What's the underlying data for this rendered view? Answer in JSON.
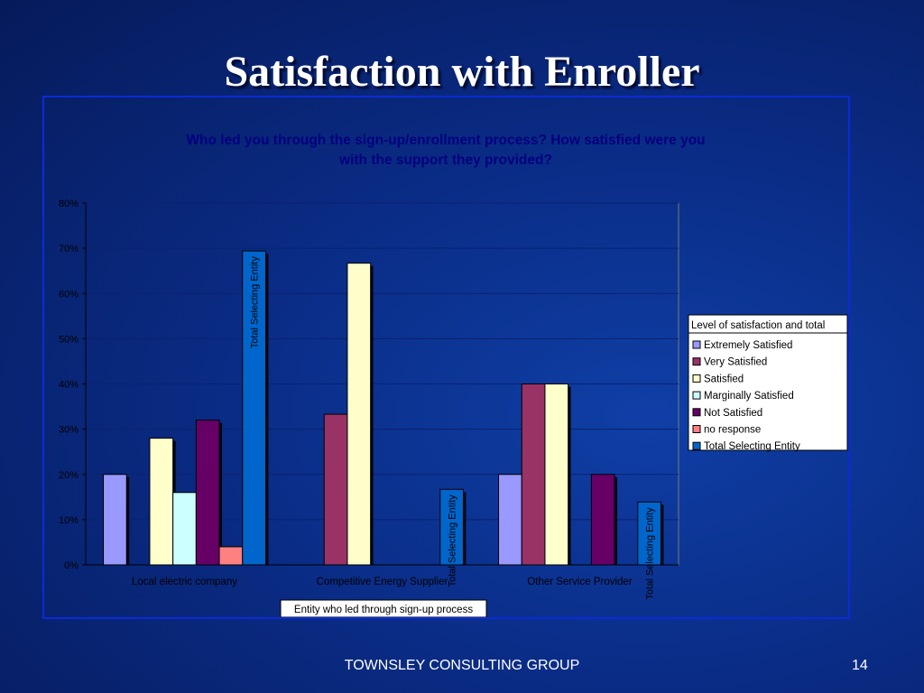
{
  "slide": {
    "title": "Satisfaction with Enroller",
    "footer": "TOWNSLEY CONSULTING GROUP",
    "page_number": "14"
  },
  "colors": {
    "chart_background": "#0a2c86",
    "frame": "#0b2bd6",
    "axis_text": "#000000"
  },
  "chart_data": {
    "type": "bar",
    "title": "Who led you through the sign-up/enrollment process? How satisfied were you with the support they provided?",
    "title_lines": [
      "Who led you through the sign-up/enrollment process? How satisfied were you",
      "with the support they provided?"
    ],
    "xlabel": "Entity who led through sign-up process",
    "ylabel": "",
    "ylim": [
      0,
      0.8
    ],
    "yticks": [
      "0%",
      "10%",
      "20%",
      "30%",
      "40%",
      "50%",
      "60%",
      "70%",
      "80%"
    ],
    "grid": true,
    "legend_position": "right",
    "legend_title": "Level of satisfaction and total",
    "categories": [
      "Local electric company",
      "Competitive Energy Supplier",
      "Other Service Provider"
    ],
    "series": [
      {
        "name": "Extremely Satisfied",
        "color": "#9999ff",
        "values": [
          0.2,
          0,
          0.2
        ]
      },
      {
        "name": "Very Satisfied",
        "color": "#993366",
        "values": [
          0,
          0.333,
          0.4
        ]
      },
      {
        "name": "Satisfied",
        "color": "#ffffcc",
        "values": [
          0.28,
          0.667,
          0.4
        ]
      },
      {
        "name": "Marginally Satisfied",
        "color": "#ccffff",
        "values": [
          0.16,
          0,
          0
        ]
      },
      {
        "name": "Not Satisfied",
        "color": "#660066",
        "values": [
          0.32,
          0,
          0.2
        ]
      },
      {
        "name": "no response",
        "color": "#ff8080",
        "values": [
          0.04,
          0,
          0
        ]
      },
      {
        "name": "Total Selecting Entity",
        "color": "#0066cc",
        "values": [
          0.694,
          0.167,
          0.139
        ],
        "bar_label": "Total Selecting Entity"
      }
    ]
  }
}
